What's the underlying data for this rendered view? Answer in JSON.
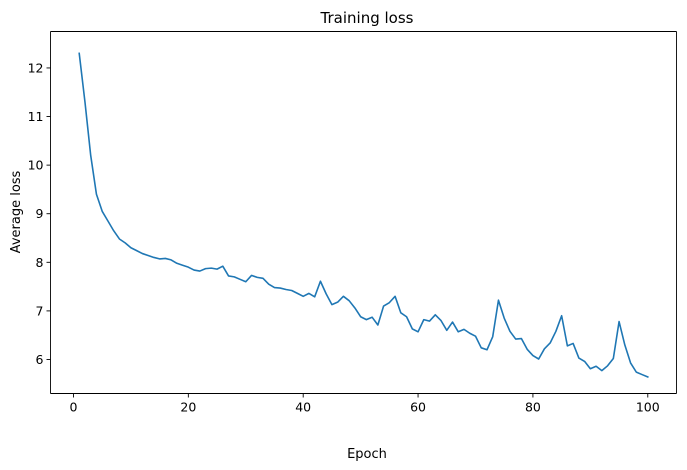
{
  "chart_data": {
    "type": "line",
    "title": "Training loss",
    "xlabel": "Epoch",
    "ylabel": "Average loss",
    "xlim": [
      -4,
      105
    ],
    "ylim": [
      5.3,
      12.75
    ],
    "xticks": [
      0,
      20,
      40,
      60,
      80,
      100
    ],
    "yticks": [
      6,
      7,
      8,
      9,
      10,
      11,
      12
    ],
    "grid": false,
    "legend": "none",
    "series": [
      {
        "color": "#1f77b4",
        "x": [
          1,
          2,
          3,
          4,
          5,
          6,
          7,
          8,
          9,
          10,
          11,
          12,
          13,
          14,
          15,
          16,
          17,
          18,
          19,
          20,
          21,
          22,
          23,
          24,
          25,
          26,
          27,
          28,
          29,
          30,
          31,
          32,
          33,
          34,
          35,
          36,
          37,
          38,
          39,
          40,
          41,
          42,
          43,
          44,
          45,
          46,
          47,
          48,
          49,
          50,
          51,
          52,
          53,
          54,
          55,
          56,
          57,
          58,
          59,
          60,
          61,
          62,
          63,
          64,
          65,
          66,
          67,
          68,
          69,
          70,
          71,
          72,
          73,
          74,
          75,
          76,
          77,
          78,
          79,
          80,
          81,
          82,
          83,
          84,
          85,
          86,
          87,
          88,
          89,
          90,
          91,
          92,
          93,
          94,
          95,
          96,
          97,
          98,
          99,
          100
        ],
        "values": [
          12.3,
          11.3,
          10.2,
          9.4,
          9.05,
          8.85,
          8.65,
          8.48,
          8.4,
          8.3,
          8.24,
          8.18,
          8.14,
          8.1,
          8.07,
          8.08,
          8.05,
          7.98,
          7.94,
          7.9,
          7.84,
          7.82,
          7.87,
          7.88,
          7.86,
          7.92,
          7.72,
          7.7,
          7.65,
          7.6,
          7.73,
          7.69,
          7.67,
          7.55,
          7.48,
          7.47,
          7.44,
          7.42,
          7.36,
          7.3,
          7.36,
          7.29,
          7.61,
          7.35,
          7.13,
          7.18,
          7.3,
          7.21,
          7.06,
          6.88,
          6.82,
          6.87,
          6.71,
          7.1,
          7.17,
          7.3,
          6.96,
          6.88,
          6.63,
          6.57,
          6.82,
          6.79,
          6.92,
          6.8,
          6.6,
          6.77,
          6.57,
          6.62,
          6.54,
          6.48,
          6.24,
          6.2,
          6.47,
          7.22,
          6.85,
          6.58,
          6.42,
          6.43,
          6.21,
          6.08,
          6.01,
          6.22,
          6.34,
          6.58,
          6.9,
          6.28,
          6.33,
          6.03,
          5.96,
          5.81,
          5.86,
          5.77,
          5.87,
          6.02,
          6.78,
          6.3,
          5.93,
          5.74,
          5.69,
          5.64
        ]
      }
    ]
  }
}
